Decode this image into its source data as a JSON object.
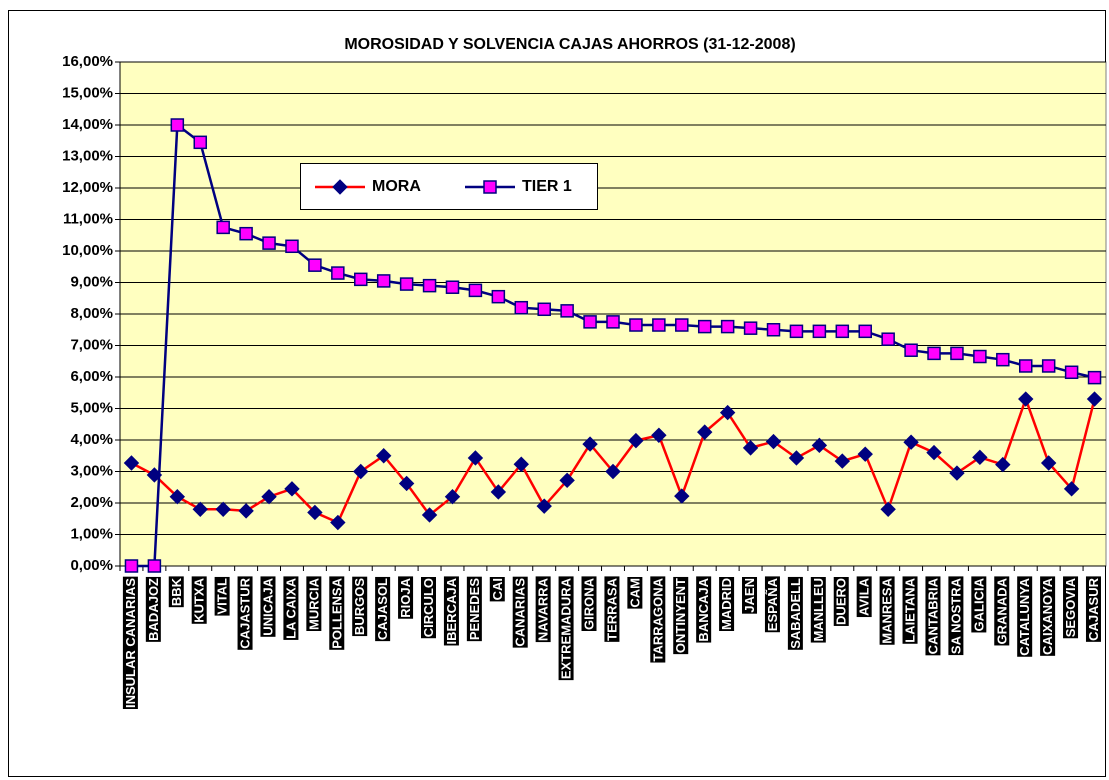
{
  "chart_data": {
    "type": "line",
    "title": "MOROSIDAD Y SOLVENCIA CAJAS AHORROS (31-12-2008)",
    "categories": [
      "INSULAR CANARIAS",
      "BADAJOZ",
      "BBK",
      "KUTXA",
      "VITAL",
      "CAJASTUR",
      "UNICAJA",
      "LA CAIXA",
      "MURCIA",
      "POLLENSA",
      "BURGOS",
      "CAJASOL",
      "RIOJA",
      "CIRCULO",
      "IBERCAJA",
      "PENEDES",
      "CAI",
      "CANARIAS",
      "NAVARRA",
      "EXTREMADURA",
      "GIRONA",
      "TERRASA",
      "CAM",
      "TARRAGONA",
      "ONTINYENT",
      "BANCAJA",
      "MADRID",
      "JAEN",
      "ESPAÑA",
      "SABADELL",
      "MANLLEU",
      "DUERO",
      "AVILA",
      "MANRESA",
      "LAIETANA",
      "CANTABRIA",
      "SA NOSTRA",
      "GALICIA",
      "GRANADA",
      "CATALUNYA",
      "CAIXANOYA",
      "SEGOVIA",
      "CAJASUR"
    ],
    "series": [
      {
        "name": "MORA",
        "color": "#ff0000",
        "marker_color": "#000080",
        "marker": "diamond",
        "values": [
          3.27,
          2.89,
          2.2,
          1.8,
          1.8,
          1.75,
          2.2,
          2.45,
          1.7,
          1.38,
          3.0,
          3.5,
          2.62,
          1.62,
          2.2,
          3.43,
          2.35,
          3.23,
          1.9,
          2.72,
          3.87,
          3.0,
          3.98,
          4.15,
          2.22,
          4.25,
          4.87,
          3.75,
          3.95,
          3.43,
          3.83,
          3.33,
          3.55,
          1.8,
          3.93,
          3.6,
          2.95,
          3.45,
          3.22,
          5.3,
          3.27,
          2.45,
          5.3
        ]
      },
      {
        "name": "TIER 1",
        "color": "#000080",
        "marker_color": "#ff00ff",
        "marker": "square",
        "values": [
          0,
          0,
          14.0,
          13.45,
          10.75,
          10.55,
          10.25,
          10.15,
          9.55,
          9.3,
          9.1,
          9.05,
          8.95,
          8.9,
          8.85,
          8.75,
          8.55,
          8.2,
          8.15,
          8.1,
          7.75,
          7.75,
          7.65,
          7.65,
          7.65,
          7.6,
          7.6,
          7.55,
          7.5,
          7.45,
          7.45,
          7.45,
          7.45,
          7.2,
          6.85,
          6.75,
          6.75,
          6.65,
          6.55,
          6.35,
          6.35,
          6.15,
          5.98
        ]
      }
    ],
    "ylim": [
      0,
      16
    ],
    "yticks": [
      {
        "value": 0,
        "label": "0,00%"
      },
      {
        "value": 1,
        "label": "1,00%"
      },
      {
        "value": 2,
        "label": "2,00%"
      },
      {
        "value": 3,
        "label": "3,00%"
      },
      {
        "value": 4,
        "label": "4,00%"
      },
      {
        "value": 5,
        "label": "5,00%"
      },
      {
        "value": 6,
        "label": "6,00%"
      },
      {
        "value": 7,
        "label": "7,00%"
      },
      {
        "value": 8,
        "label": "8,00%"
      },
      {
        "value": 9,
        "label": "9,00%"
      },
      {
        "value": 10,
        "label": "10,00%"
      },
      {
        "value": 11,
        "label": "11,00%"
      },
      {
        "value": 12,
        "label": "12,00%"
      },
      {
        "value": 13,
        "label": "13,00%"
      },
      {
        "value": 14,
        "label": "14,00%"
      },
      {
        "value": 15,
        "label": "15,00%"
      },
      {
        "value": 16,
        "label": "16,00%"
      }
    ],
    "grid": true,
    "plot_background": "#ffffc0"
  }
}
